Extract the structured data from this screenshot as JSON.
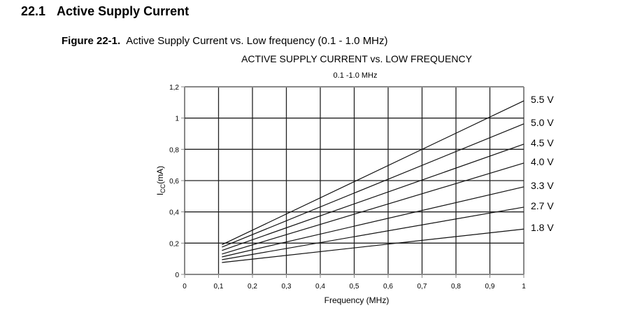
{
  "section": {
    "number": "22.1",
    "title": "Active Supply Current"
  },
  "figure": {
    "label": "Figure 22-1.",
    "caption": "Active Supply Current vs. Low frequency (0.1 - 1.0 MHz)"
  },
  "chart_data": {
    "type": "line",
    "title": "ACTIVE SUPPLY CURRENT vs. LOW FREQUENCY",
    "subtitle": "0.1 -1.0 MHz",
    "xlabel": "Frequency (MHz)",
    "ylabel_main": "I",
    "ylabel_sub": "CC",
    "ylabel_unit": "(mA)",
    "xlim": [
      0,
      1
    ],
    "ylim": [
      0,
      1.2
    ],
    "grid": true,
    "xticks": [
      0,
      0.1,
      0.2,
      0.3,
      0.4,
      0.5,
      0.6,
      0.7,
      0.8,
      0.9,
      1
    ],
    "xtick_labels": [
      "0",
      "0,1",
      "0,2",
      "0,3",
      "0,4",
      "0,5",
      "0,6",
      "0,7",
      "0,8",
      "0,9",
      "1"
    ],
    "yticks": [
      0,
      0.2,
      0.4,
      0.6,
      0.8,
      1,
      1.2
    ],
    "ytick_labels": [
      "0",
      "0,2",
      "0,4",
      "0,6",
      "0,8",
      "1",
      "1,2"
    ],
    "series": [
      {
        "name": "5.5 V",
        "x": [
          0.11,
          1
        ],
        "y": [
          0.19,
          1.11
        ]
      },
      {
        "name": "5.0 V",
        "x": [
          0.11,
          1
        ],
        "y": [
          0.175,
          0.963
        ]
      },
      {
        "name": "4.5 V",
        "x": [
          0.11,
          1
        ],
        "y": [
          0.153,
          0.833
        ]
      },
      {
        "name": "4.0 V",
        "x": [
          0.11,
          1
        ],
        "y": [
          0.13,
          0.712
        ]
      },
      {
        "name": "3.3 V",
        "x": [
          0.11,
          1
        ],
        "y": [
          0.112,
          0.56
        ]
      },
      {
        "name": "2.7 V",
        "x": [
          0.11,
          1
        ],
        "y": [
          0.094,
          0.43
        ]
      },
      {
        "name": "1.8 V",
        "x": [
          0.11,
          1
        ],
        "y": [
          0.076,
          0.29
        ]
      }
    ]
  }
}
